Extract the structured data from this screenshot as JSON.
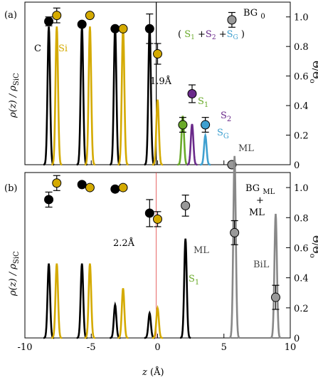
{
  "chart_data": [
    {
      "type": "line",
      "panel_label": "(a)",
      "system_label": {
        "main": "BG",
        "sub": "0"
      },
      "ylabel_left": "ρ(z) / ρSiC",
      "ylabel_left_main": "ρ(z) / ρ",
      "ylabel_left_sub": "SiC",
      "ylabel_right": "Θ/Θo",
      "ylabel_right_main": "Θ/Θ",
      "ylabel_right_sub": "o",
      "ylim_right": [
        0,
        1.1
      ],
      "right_ticks": [
        "0",
        "0.2",
        "0.4",
        "0.6",
        "0.8",
        "1.0"
      ],
      "element_labels": {
        "C": "C",
        "Si": "Si"
      },
      "annotations": {
        "sum_label": {
          "open": "(",
          "S1": "S",
          "S1_sub": "1",
          "plus1": "+",
          "S2": "S",
          "S2_sub": "2",
          "plus2": "+",
          "SG": "S",
          "SG_sub": "G",
          "close": ")"
        },
        "distance": "1.9Å",
        "S1": {
          "main": "S",
          "sub": "1"
        },
        "S2": {
          "main": "S",
          "sub": "2"
        },
        "SG": {
          "main": "S",
          "sub": "G"
        },
        "ML": "ML"
      },
      "series": [
        {
          "name": "C",
          "color": "#000000",
          "peaks": [
            {
              "z": -8.2,
              "height": 0.85
            },
            {
              "z": -5.7,
              "height": 0.85
            },
            {
              "z": -3.2,
              "height": 0.85
            },
            {
              "z": -0.6,
              "height": 0.85
            }
          ]
        },
        {
          "name": "Si",
          "color": "#d4aa00",
          "peaks": [
            {
              "z": -7.6,
              "height": 0.85
            },
            {
              "z": -5.1,
              "height": 0.85
            },
            {
              "z": -2.6,
              "height": 0.85
            },
            {
              "z": 0.0,
              "height": 0.4
            }
          ]
        },
        {
          "name": "S1",
          "color": "#6aaa2a",
          "peaks": [
            {
              "z": 1.9,
              "height": 0.3
            }
          ]
        },
        {
          "name": "S2",
          "color": "#6a2a8a",
          "peaks": [
            {
              "z": 2.6,
              "height": 0.25
            }
          ]
        },
        {
          "name": "SG",
          "color": "#3fa0d0",
          "peaks": [
            {
              "z": 3.6,
              "height": 0.18
            }
          ]
        }
      ],
      "coverage_points": [
        {
          "z": -8.2,
          "theta": 0.97,
          "color": "#000000",
          "err": 0.03
        },
        {
          "z": -7.6,
          "theta": 1.01,
          "color": "#d4aa00",
          "err": 0.05
        },
        {
          "z": -5.7,
          "theta": 0.95,
          "color": "#000000"
        },
        {
          "z": -5.1,
          "theta": 1.01,
          "color": "#d4aa00"
        },
        {
          "z": -3.2,
          "theta": 0.92,
          "color": "#000000"
        },
        {
          "z": -2.6,
          "theta": 0.92,
          "color": "#d4aa00"
        },
        {
          "z": -0.6,
          "theta": 0.92,
          "color": "#000000",
          "err": 0.1
        },
        {
          "z": 0.0,
          "theta": 0.75,
          "color": "#d4aa00",
          "err": 0.07
        },
        {
          "z": 5.6,
          "theta": 0.98,
          "color": "#999999",
          "err": 0.05
        },
        {
          "z": 2.6,
          "theta": 0.48,
          "color": "#6a2a8a",
          "err": 0.06
        },
        {
          "z": 1.9,
          "theta": 0.27,
          "color": "#6aaa2a",
          "err": 0.05
        },
        {
          "z": 3.6,
          "theta": 0.27,
          "color": "#3fa0d0",
          "err": 0.05
        },
        {
          "z": 5.6,
          "theta": 0.0,
          "color": "#999999"
        }
      ],
      "vertical_line_z": -0.1
    },
    {
      "type": "line",
      "panel_label": "(b)",
      "system_label": {
        "main": "BG",
        "sub": "ML",
        "plus": "+",
        "second": "ML"
      },
      "ylabel_left": "ρ(z) / ρSiC",
      "ylabel_left_main": "ρ(z) / ρ",
      "ylabel_left_sub": "SiC",
      "ylabel_right": "Θ/Θo",
      "ylabel_right_main": "Θ/Θ",
      "ylabel_right_sub": "o",
      "xlabel": "z (Å)",
      "xlabel_main": "z",
      "xlabel_unit": "(Å)",
      "xlim": [
        -10,
        10
      ],
      "xticks": [
        "-10",
        "-5",
        "0",
        "5",
        "10"
      ],
      "ylim_right": [
        0,
        1.1
      ],
      "right_ticks": [
        "0",
        "0.2",
        "0.4",
        "0.6",
        "0.8",
        "1.0"
      ],
      "annotations": {
        "distance": "2.2Å",
        "S1": {
          "main": "S",
          "sub": "1"
        },
        "ML": "ML",
        "BiL": "BiL"
      },
      "series": [
        {
          "name": "C",
          "color": "#000000",
          "peaks": [
            {
              "z": -8.2,
              "height": 0.45
            },
            {
              "z": -5.7,
              "height": 0.45
            },
            {
              "z": -3.2,
              "height": 0.2
            },
            {
              "z": -0.6,
              "height": 0.15
            }
          ]
        },
        {
          "name": "Si",
          "color": "#d4aa00",
          "peaks": [
            {
              "z": -7.6,
              "height": 0.45
            },
            {
              "z": -5.1,
              "height": 0.45
            },
            {
              "z": -2.6,
              "height": 0.3
            },
            {
              "z": 0.0,
              "height": 0.18
            }
          ]
        },
        {
          "name": "S1",
          "color": "#000000",
          "peaks": [
            {
              "z": 2.1,
              "height": 0.6
            }
          ]
        },
        {
          "name": "ML",
          "color": "#888888",
          "peaks": [
            {
              "z": 5.8,
              "height": 1.1
            }
          ]
        },
        {
          "name": "BiL",
          "color": "#888888",
          "peaks": [
            {
              "z": 8.9,
              "height": 0.75
            }
          ]
        }
      ],
      "coverage_points": [
        {
          "z": -8.2,
          "theta": 0.92,
          "color": "#000000",
          "err": 0.05
        },
        {
          "z": -7.6,
          "theta": 1.03,
          "color": "#d4aa00",
          "err": 0.05
        },
        {
          "z": -5.7,
          "theta": 1.02,
          "color": "#000000"
        },
        {
          "z": -5.1,
          "theta": 1.0,
          "color": "#d4aa00"
        },
        {
          "z": -3.2,
          "theta": 0.99,
          "color": "#000000"
        },
        {
          "z": -2.6,
          "theta": 1.0,
          "color": "#d4aa00"
        },
        {
          "z": -0.6,
          "theta": 0.83,
          "color": "#000000",
          "err": 0.09
        },
        {
          "z": 0.0,
          "theta": 0.79,
          "color": "#d4aa00",
          "err": 0.05
        },
        {
          "z": 2.1,
          "theta": 0.88,
          "color": "#999999",
          "err": 0.07
        },
        {
          "z": 5.8,
          "theta": 0.7,
          "color": "#999999",
          "err": 0.08
        },
        {
          "z": 8.9,
          "theta": 0.27,
          "color": "#999999",
          "err": 0.08
        }
      ],
      "vertical_line_z": -0.1
    }
  ]
}
